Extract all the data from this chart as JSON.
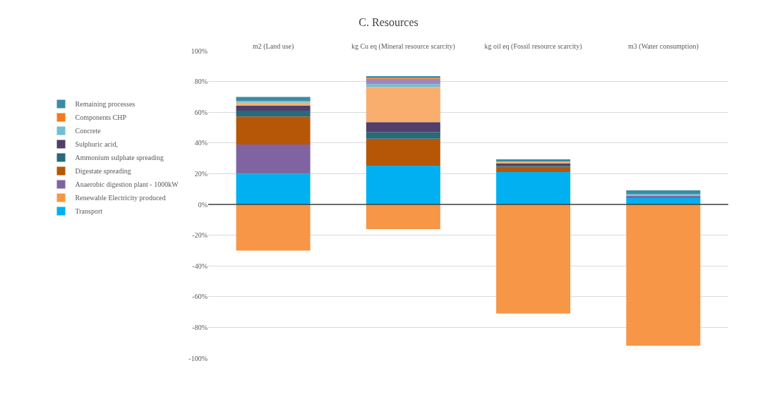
{
  "chart_data": {
    "type": "bar",
    "title": "C. Resources",
    "stacked": true,
    "categories": [
      "m2 (Land use)",
      "kg Cu eq (Mineral resource scarcity)",
      "kg oil eq (Fossil resource scarcity)",
      "m3 (Water consumption)"
    ],
    "series": [
      {
        "name": "Transport",
        "color": "#00b0f0",
        "values": [
          20,
          25.2,
          21.1,
          4.1
        ]
      },
      {
        "name": "Renewable Electricity produced",
        "color": "#f79646",
        "values": [
          -30,
          -16,
          -71,
          -92
        ]
      },
      {
        "name": "Anaerobic digestion plant - 1000kW",
        "color": "#8064a2",
        "values": [
          19,
          null,
          null,
          1.5
        ]
      },
      {
        "name": "Digestate spreading",
        "color": "#b65708",
        "values": [
          18.2,
          17.6,
          3.4,
          null
        ]
      },
      {
        "name": "Ammonium sulphate spreading",
        "color": "#276a7c",
        "values": [
          3.8,
          4.2,
          1.4,
          null
        ]
      },
      {
        "name": "Sulphuric acid,",
        "color": "#4f3f69",
        "values": [
          3.2,
          6.5,
          0.7,
          null
        ]
      },
      {
        "color": "#f9ae6e",
        "values": [
          2.1,
          23,
          1.4,
          null
        ]
      },
      {
        "name": "Concrete",
        "color": "#6fc0d4",
        "values": [
          1,
          1.8,
          null,
          1
        ]
      },
      {
        "color": "#9a89c0",
        "values": [
          null,
          3.5,
          null,
          null
        ]
      },
      {
        "name": "Components CHP",
        "color": "#f47a20",
        "values": [
          null,
          1,
          null,
          null
        ]
      },
      {
        "name": "Remaining processes",
        "color": "#3a8ca6",
        "values": [
          2.6,
          0.7,
          1.4,
          2.6
        ]
      }
    ],
    "ylim": [
      -100,
      100
    ],
    "yticks": [
      {
        "value": -100,
        "label": "-100%"
      },
      {
        "value": -80,
        "label": "-80%"
      },
      {
        "value": -60,
        "label": "-60%"
      },
      {
        "value": -40,
        "label": "-40%"
      },
      {
        "value": -20,
        "label": "-20%"
      },
      {
        "value": 0,
        "label": "0%"
      },
      {
        "value": 20,
        "label": "20%"
      },
      {
        "value": 40,
        "label": "40%"
      },
      {
        "value": 60,
        "label": "60%"
      },
      {
        "value": 80,
        "label": "80%"
      },
      {
        "value": 100,
        "label": "100%"
      }
    ],
    "ref_lines": [
      {
        "axis": "y",
        "value": 0,
        "color": "#404040"
      }
    ],
    "grid": "y",
    "legend": "left"
  }
}
